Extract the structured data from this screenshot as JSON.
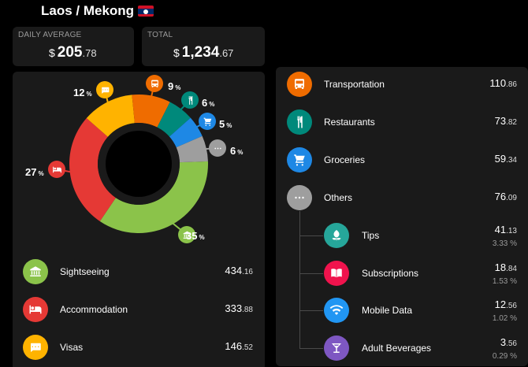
{
  "header": {
    "title": "Laos / Mekong"
  },
  "stats": {
    "daily_average": {
      "label": "DAILY AVERAGE",
      "currency": "$",
      "whole": "205",
      "cents": ".78"
    },
    "total": {
      "label": "TOTAL",
      "currency": "$",
      "whole": "1,234",
      "cents": ".67"
    }
  },
  "chart_data": {
    "type": "pie",
    "slices": [
      {
        "name": "Sightseeing",
        "percent": 35,
        "label": "35",
        "color": "#8bc34a",
        "icon": "museum-icon"
      },
      {
        "name": "Accommodation",
        "percent": 27,
        "label": "27",
        "color": "#e53935",
        "icon": "bed-icon"
      },
      {
        "name": "Visas",
        "percent": 12,
        "label": "12",
        "color": "#ffb300",
        "icon": "chat-icon"
      },
      {
        "name": "Transportation",
        "percent": 9,
        "label": "9",
        "color": "#ef6c00",
        "icon": "bus-icon"
      },
      {
        "name": "Restaurants",
        "percent": 6,
        "label": "6",
        "color": "#00897b",
        "icon": "fork-knife-icon"
      },
      {
        "name": "Groceries",
        "percent": 5,
        "label": "5",
        "color": "#1e88e5",
        "icon": "cart-icon"
      },
      {
        "name": "Others",
        "percent": 6,
        "label": "6",
        "color": "#9e9e9e",
        "icon": "more-icon"
      }
    ],
    "percent_unit": "%"
  },
  "left_list": [
    {
      "name": "Sightseeing",
      "whole": "434",
      "cents": ".16",
      "color": "#8bc34a",
      "icon": "museum-icon"
    },
    {
      "name": "Accommodation",
      "whole": "333",
      "cents": ".88",
      "color": "#e53935",
      "icon": "bed-icon"
    },
    {
      "name": "Visas",
      "whole": "146",
      "cents": ".52",
      "color": "#ffb300",
      "icon": "chat-icon"
    }
  ],
  "right_list": [
    {
      "name": "Transportation",
      "whole": "110",
      "cents": ".86",
      "color": "#ef6c00",
      "icon": "bus-icon"
    },
    {
      "name": "Restaurants",
      "whole": "73",
      "cents": ".82",
      "color": "#00897b",
      "icon": "fork-knife-icon"
    },
    {
      "name": "Groceries",
      "whole": "59",
      "cents": ".34",
      "color": "#1e88e5",
      "icon": "cart-icon"
    },
    {
      "name": "Others",
      "whole": "76",
      "cents": ".09",
      "color": "#9e9e9e",
      "icon": "more-icon"
    }
  ],
  "others_children": [
    {
      "name": "Tips",
      "whole": "41",
      "cents": ".13",
      "share": "3.33 %",
      "color": "#26a69a",
      "icon": "leaf-icon"
    },
    {
      "name": "Subscriptions",
      "whole": "18",
      "cents": ".84",
      "share": "1.53 %",
      "color": "#f0134d",
      "icon": "book-icon"
    },
    {
      "name": "Mobile Data",
      "whole": "12",
      "cents": ".56",
      "share": "1.02 %",
      "color": "#2196f3",
      "icon": "wifi-icon"
    },
    {
      "name": "Adult Beverages",
      "whole": "3",
      "cents": ".56",
      "share": "0.29 %",
      "color": "#7e57c2",
      "icon": "cocktail-icon"
    }
  ]
}
